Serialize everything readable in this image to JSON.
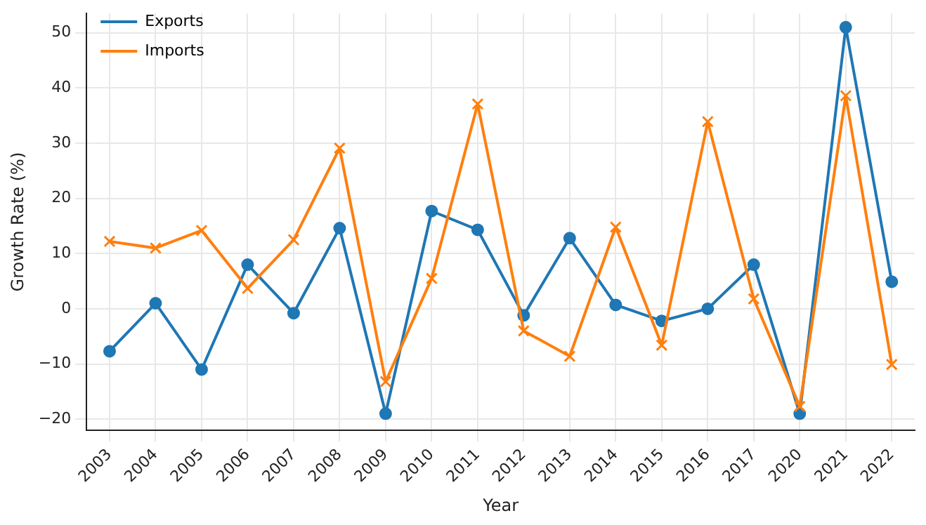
{
  "chart_data": {
    "type": "line",
    "xlabel": "Year",
    "ylabel": "Growth Rate (%)",
    "categories": [
      "2003",
      "2004",
      "2005",
      "2006",
      "2007",
      "2008",
      "2009",
      "2010",
      "2011",
      "2012",
      "2013",
      "2014",
      "2015",
      "2016",
      "2017",
      "2020",
      "2021",
      "2022"
    ],
    "series": [
      {
        "name": "Exports",
        "color": "#1f77b4",
        "marker": "circle",
        "values": [
          -7.7,
          1,
          -11,
          8,
          -0.8,
          14.6,
          -19,
          17.7,
          14.3,
          -1.2,
          12.8,
          0.7,
          -2.2,
          0,
          8,
          -19,
          51,
          4.9
        ]
      },
      {
        "name": "Imports",
        "color": "#ff7f0e",
        "marker": "cross",
        "values": [
          12.2,
          11,
          14.2,
          3.7,
          12.5,
          29.1,
          -13.2,
          5.5,
          37.1,
          -4,
          -8.6,
          14.8,
          -6.6,
          33.9,
          1.8,
          -17.7,
          38.6,
          -10.1
        ]
      }
    ],
    "ylim": [
      -22,
      53.5
    ],
    "yticks": [
      -20,
      -10,
      0,
      10,
      20,
      30,
      40,
      50
    ],
    "grid": true,
    "legend": "top left",
    "line_style": "solid"
  }
}
